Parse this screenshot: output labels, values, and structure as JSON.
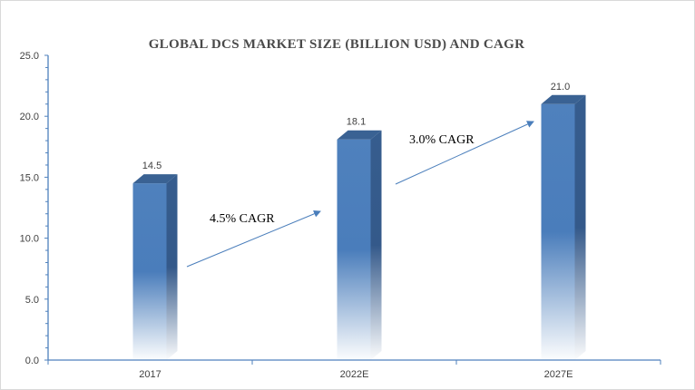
{
  "chart_data": {
    "type": "bar",
    "title": "GLOBAL DCS MARKET SIZE  (BILLION USD) AND CAGR",
    "categories": [
      "2017",
      "2022E",
      "2027E"
    ],
    "values": [
      14.5,
      18.1,
      21.0
    ],
    "data_labels": [
      "14.5",
      "18.1",
      "21.0"
    ],
    "xlabel": "",
    "ylabel": "",
    "ylim": [
      0,
      25
    ],
    "yticks": [
      "0.0",
      "5.0",
      "10.0",
      "15.0",
      "20.0",
      "25.0"
    ],
    "grid": false,
    "legend": "none",
    "bar_style": "3d-gradient",
    "colors": {
      "bar": "#4f81bd",
      "side": "#355a8a",
      "axis": "#4f81bd",
      "arrow": "#4a7ebb"
    },
    "annotations": [
      {
        "text": "4.5% CAGR",
        "from": "2017",
        "to": "2022E"
      },
      {
        "text": "3.0% CAGR",
        "from": "2022E",
        "to": "2027E"
      }
    ]
  }
}
